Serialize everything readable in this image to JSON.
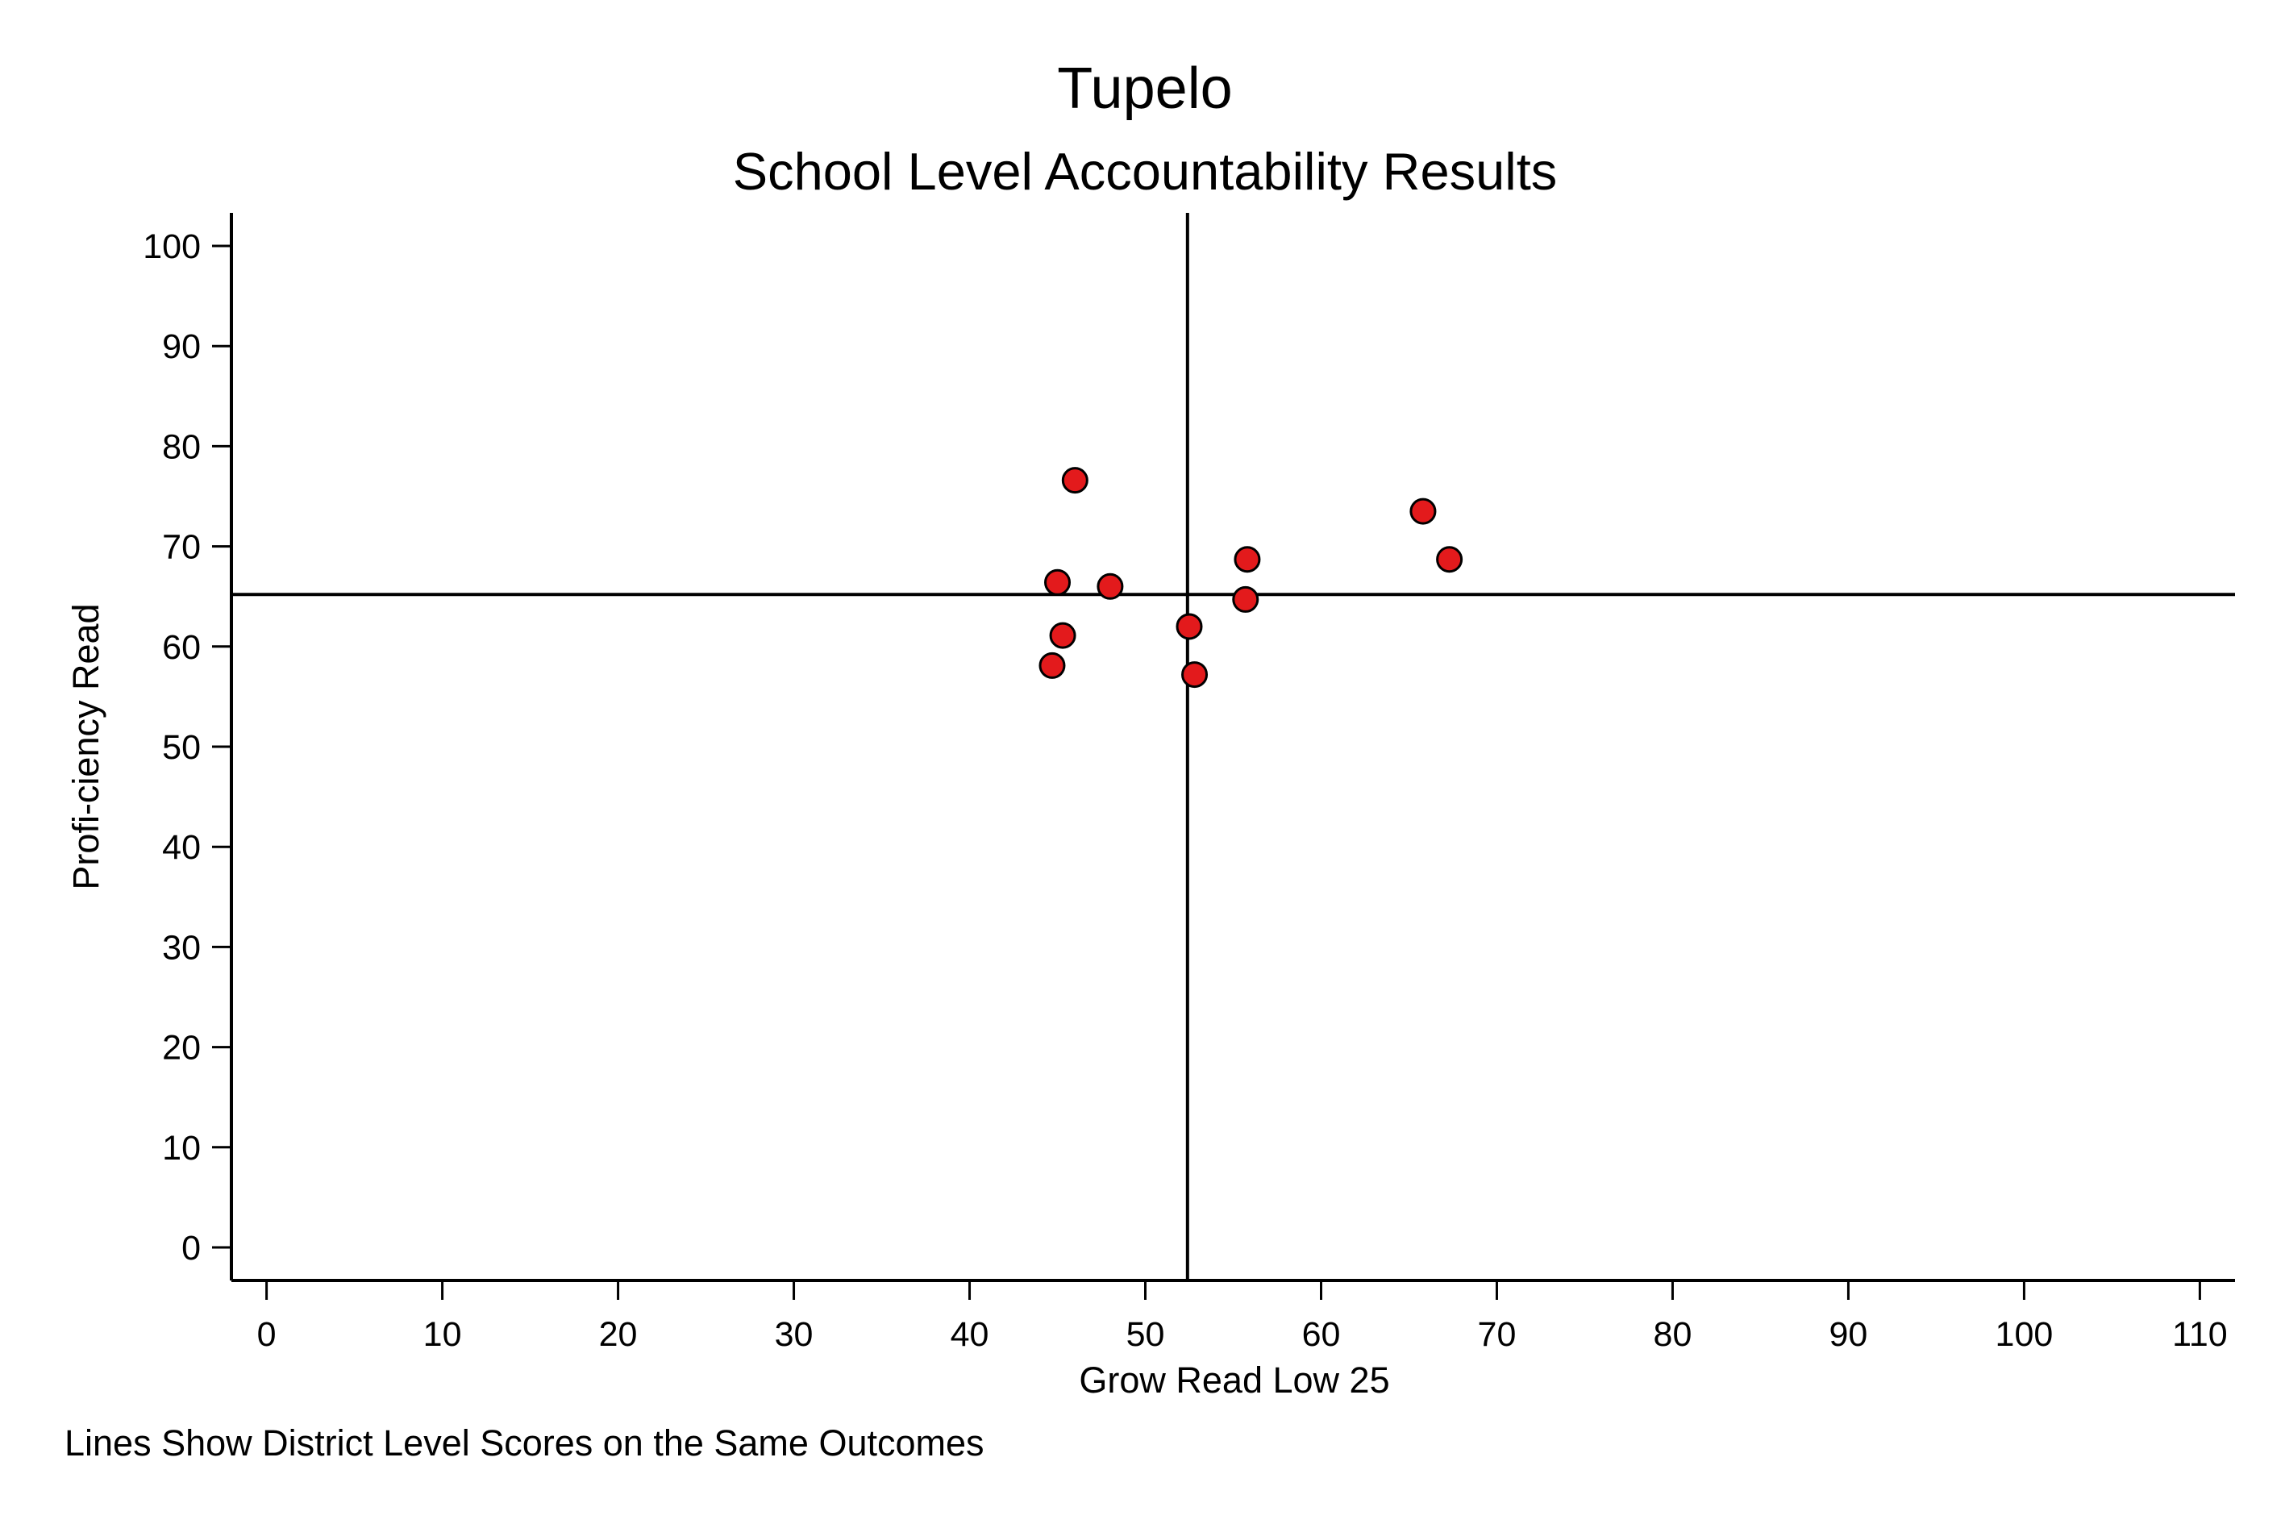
{
  "chart_data": {
    "type": "scatter",
    "title": "Tupelo",
    "subtitle": "School Level Accountability Results",
    "xlabel": "Grow Read Low 25",
    "ylabel": "Profi-ciency Read",
    "note": "Lines Show District Level Scores on the Same Outcomes",
    "xlim": [
      -2,
      112
    ],
    "ylim": [
      -3.3,
      103.3
    ],
    "xticks": [
      0,
      10,
      20,
      30,
      40,
      50,
      60,
      70,
      80,
      90,
      100,
      110
    ],
    "yticks": [
      0,
      10,
      20,
      30,
      40,
      50,
      60,
      70,
      80,
      90,
      100
    ],
    "xtick_labels": [
      "0",
      "10",
      "20",
      "30",
      "40",
      "50",
      "60",
      "70",
      "80",
      "90",
      "100",
      "110"
    ],
    "ytick_labels": [
      "0",
      "10",
      "20",
      "30",
      "40",
      "50",
      "60",
      "70",
      "80",
      "90",
      "100"
    ],
    "grid": false,
    "reference_lines": {
      "x": 52.4,
      "y": 65.2
    },
    "marker_color": "#e31a1c",
    "marker_edge_color": "#000000",
    "points": [
      {
        "x": 46.0,
        "y": 76.6
      },
      {
        "x": 45.0,
        "y": 66.4
      },
      {
        "x": 48.0,
        "y": 66.0
      },
      {
        "x": 45.3,
        "y": 61.1
      },
      {
        "x": 44.7,
        "y": 58.1
      },
      {
        "x": 52.5,
        "y": 62.0
      },
      {
        "x": 52.8,
        "y": 57.2
      },
      {
        "x": 55.8,
        "y": 68.7
      },
      {
        "x": 55.7,
        "y": 64.7
      },
      {
        "x": 65.8,
        "y": 73.5
      },
      {
        "x": 67.3,
        "y": 68.7
      }
    ]
  }
}
